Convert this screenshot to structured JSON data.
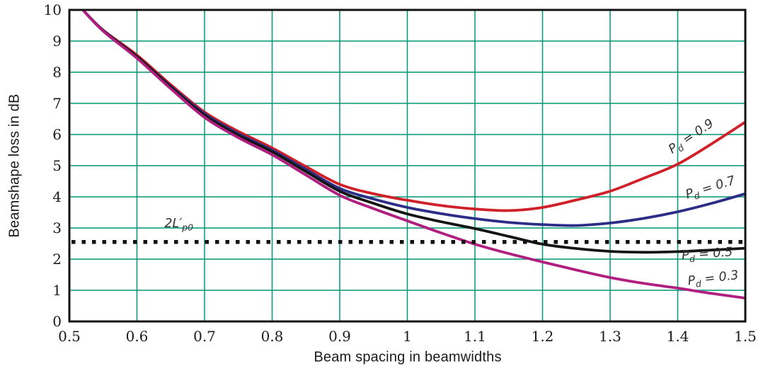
{
  "chart_data": {
    "type": "line",
    "title": "",
    "xlabel": "Beam spacing in beamwidths",
    "ylabel": "Beamshape loss in dB",
    "xlim": [
      0.5,
      1.5
    ],
    "ylim": [
      0,
      10
    ],
    "x_ticks": [
      0.5,
      0.6,
      0.7,
      0.8,
      0.9,
      1.0,
      1.1,
      1.2,
      1.3,
      1.4,
      1.5
    ],
    "x_tick_labels": [
      "0.5",
      "0.6",
      "0.7",
      "0.8",
      "0.9",
      "1",
      "1.1",
      "1.2",
      "1.3",
      "1.4",
      "1.5"
    ],
    "y_ticks": [
      0,
      1,
      2,
      3,
      4,
      5,
      6,
      7,
      8,
      9,
      10
    ],
    "y_tick_labels": [
      "0",
      "1",
      "2",
      "3",
      "4",
      "5",
      "6",
      "7",
      "8",
      "9",
      "10"
    ],
    "grid": true,
    "grid_color": "#009673",
    "axis_color": "#141414",
    "tick_label_color": "#1c1c1c",
    "annotation_color": "#333333",
    "series": [
      {
        "name": "Pd=0.9",
        "color": "#d02128",
        "x": [
          0.52,
          0.55,
          0.6,
          0.65,
          0.7,
          0.75,
          0.8,
          0.85,
          0.9,
          0.95,
          1.0,
          1.05,
          1.1,
          1.15,
          1.2,
          1.25,
          1.3,
          1.35,
          1.4,
          1.45,
          1.5
        ],
        "y": [
          10,
          9.35,
          8.55,
          7.6,
          6.72,
          6.1,
          5.57,
          4.97,
          4.4,
          4.1,
          3.89,
          3.72,
          3.61,
          3.56,
          3.66,
          3.9,
          4.18,
          4.6,
          5.05,
          5.7,
          6.4
        ]
      },
      {
        "name": "Pd=0.7",
        "color": "#2c2d87",
        "x": [
          0.52,
          0.55,
          0.6,
          0.65,
          0.7,
          0.75,
          0.8,
          0.85,
          0.9,
          0.95,
          1.0,
          1.05,
          1.1,
          1.15,
          1.2,
          1.25,
          1.3,
          1.35,
          1.4,
          1.45,
          1.5
        ],
        "y": [
          10,
          9.34,
          8.5,
          7.55,
          6.67,
          6.03,
          5.5,
          4.88,
          4.27,
          3.93,
          3.66,
          3.46,
          3.3,
          3.18,
          3.11,
          3.08,
          3.16,
          3.31,
          3.52,
          3.79,
          4.1
        ]
      },
      {
        "name": "Pd=0.5",
        "color": "#151515",
        "x": [
          0.52,
          0.55,
          0.6,
          0.65,
          0.7,
          0.75,
          0.8,
          0.85,
          0.9,
          0.95,
          1.0,
          1.05,
          1.1,
          1.15,
          1.2,
          1.25,
          1.3,
          1.35,
          1.4,
          1.45,
          1.5
        ],
        "y": [
          10,
          9.33,
          8.5,
          7.52,
          6.62,
          5.98,
          5.45,
          4.81,
          4.18,
          3.79,
          3.45,
          3.2,
          2.98,
          2.73,
          2.48,
          2.34,
          2.25,
          2.22,
          2.24,
          2.29,
          2.35
        ]
      },
      {
        "name": "Pd=0.3",
        "color": "#b01f7f",
        "x": [
          0.52,
          0.55,
          0.6,
          0.65,
          0.7,
          0.75,
          0.8,
          0.85,
          0.9,
          0.95,
          1.0,
          1.05,
          1.1,
          1.15,
          1.2,
          1.25,
          1.3,
          1.35,
          1.4,
          1.45,
          1.5
        ],
        "y": [
          10,
          9.32,
          8.45,
          7.47,
          6.55,
          5.9,
          5.35,
          4.7,
          4.05,
          3.62,
          3.23,
          2.84,
          2.48,
          2.18,
          1.91,
          1.65,
          1.41,
          1.22,
          1.07,
          0.9,
          0.75
        ]
      }
    ],
    "reference_line": {
      "y": 2.55,
      "style": "dotted",
      "color": "#111111"
    },
    "annotations": [
      {
        "main": "P",
        "sub": "d",
        "rest": " = 0.9",
        "x": 1.423,
        "y": 5.84,
        "rotate": -34
      },
      {
        "main": "P",
        "sub": "d",
        "rest": " = 0.7",
        "x": 1.45,
        "y": 4.18,
        "rotate": -17
      },
      {
        "main": "P",
        "sub": "d",
        "rest": " = 0.5",
        "x": 1.444,
        "y": 2.05,
        "rotate": -4
      },
      {
        "main": "P",
        "sub": "d",
        "rest": " = 0.3",
        "x": 1.453,
        "y": 1.27,
        "rotate": -7
      },
      {
        "main": "2L′",
        "sub": "p0",
        "rest": "",
        "x": 0.662,
        "y": 3.02,
        "rotate": 0
      }
    ]
  }
}
